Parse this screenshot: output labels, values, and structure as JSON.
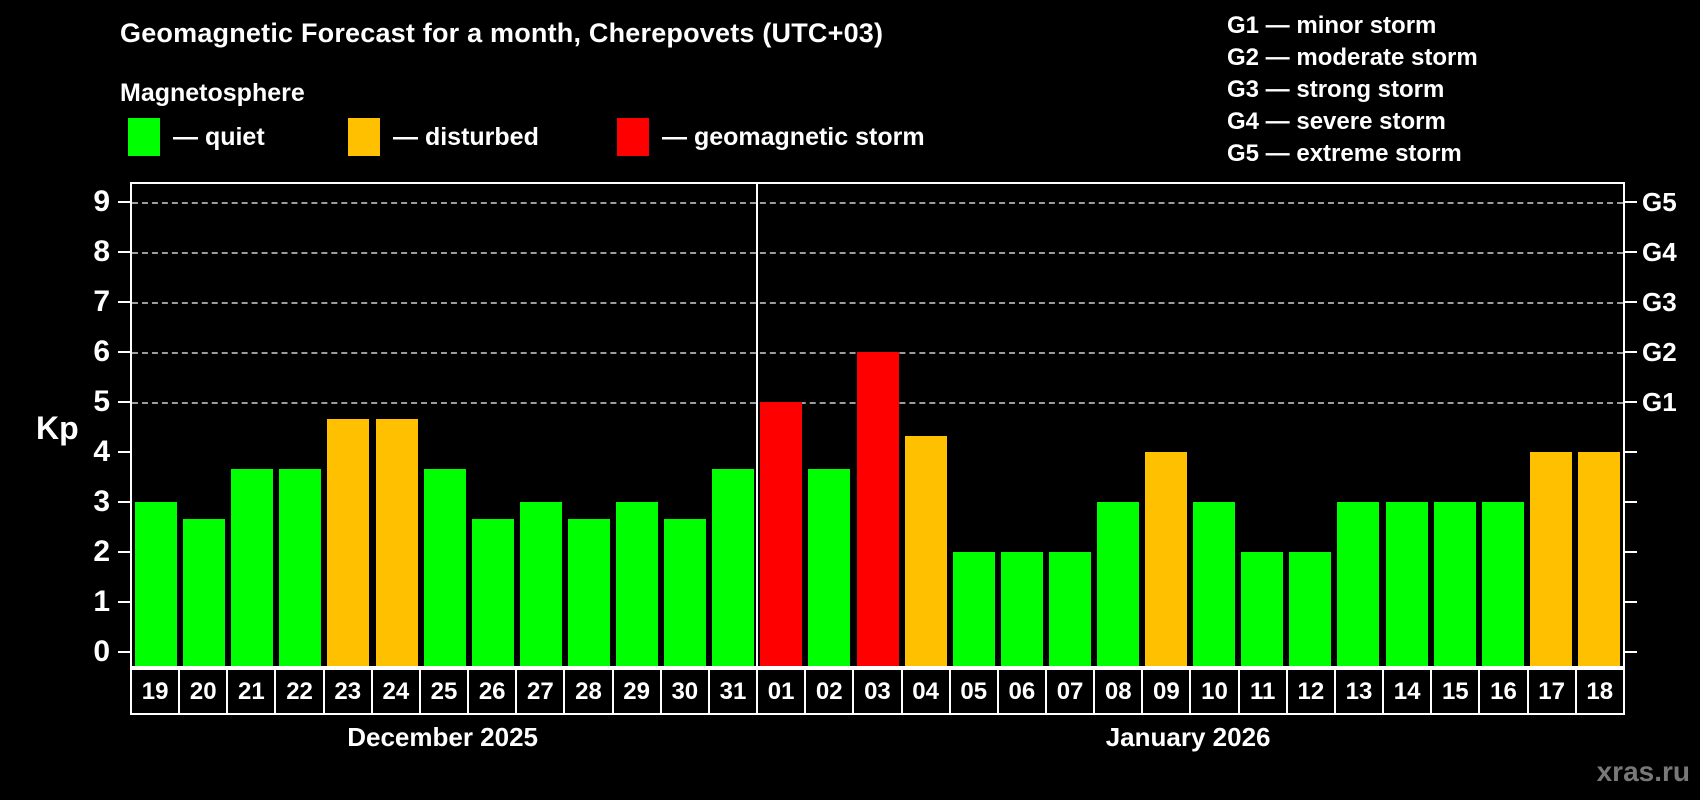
{
  "header": {
    "title": "Geomagnetic Forecast for a month, Cherepovets (UTC+03)",
    "subtitle": "Magnetosphere"
  },
  "legend": {
    "items": [
      {
        "key": "quiet",
        "label": "— quiet"
      },
      {
        "key": "disturbed",
        "label": "— disturbed"
      },
      {
        "key": "storm",
        "label": "— geomagnetic storm"
      }
    ]
  },
  "g_scale_legend": {
    "lines": [
      "G1 — minor storm",
      "G2 — moderate storm",
      "G3 — strong storm",
      "G4 — severe storm",
      "G5 — extreme storm"
    ]
  },
  "watermark": "xras.ru",
  "chart_data": {
    "type": "bar",
    "title": "Geomagnetic Forecast for a month, Cherepovets (UTC+03)",
    "ylabel": "Kp",
    "ylim": [
      0,
      9
    ],
    "yticks": [
      0,
      1,
      2,
      3,
      4,
      5,
      6,
      7,
      8,
      9
    ],
    "grid": "horizontal dashed lines at Kp 5,6,7,8,9 only",
    "legend_position": "top-left and top-right",
    "colors": {
      "quiet": "#00ff00",
      "disturbed": "#ffc000",
      "storm": "#ff0000",
      "background": "#000000",
      "text": "#ffffff",
      "gridline": "#aaaaaa",
      "watermark": "#787878"
    },
    "right_axis": [
      {
        "kp": 9,
        "label": "G5"
      },
      {
        "kp": 8,
        "label": "G4"
      },
      {
        "kp": 7,
        "label": "G3"
      },
      {
        "kp": 6,
        "label": "G2"
      },
      {
        "kp": 5,
        "label": "G1"
      }
    ],
    "months": [
      {
        "label": "December 2025",
        "days": 13
      },
      {
        "label": "January 2026",
        "days": 18
      }
    ],
    "categories": [
      "19",
      "20",
      "21",
      "22",
      "23",
      "24",
      "25",
      "26",
      "27",
      "28",
      "29",
      "30",
      "31",
      "01",
      "02",
      "03",
      "04",
      "05",
      "06",
      "07",
      "08",
      "09",
      "10",
      "11",
      "12",
      "13",
      "14",
      "15",
      "16",
      "17",
      "18"
    ],
    "values": [
      3,
      2.67,
      3.67,
      3.67,
      4.67,
      4.67,
      3.67,
      2.67,
      3,
      2.67,
      3,
      2.67,
      3.67,
      5,
      3.67,
      6,
      4.33,
      2,
      2,
      2,
      3,
      4,
      3,
      2,
      2,
      3,
      3,
      3,
      3,
      4,
      4
    ],
    "statuses": [
      "quiet",
      "quiet",
      "quiet",
      "quiet",
      "disturbed",
      "disturbed",
      "quiet",
      "quiet",
      "quiet",
      "quiet",
      "quiet",
      "quiet",
      "quiet",
      "storm",
      "quiet",
      "storm",
      "disturbed",
      "quiet",
      "quiet",
      "quiet",
      "quiet",
      "disturbed",
      "quiet",
      "quiet",
      "quiet",
      "quiet",
      "quiet",
      "quiet",
      "quiet",
      "disturbed",
      "disturbed"
    ]
  }
}
